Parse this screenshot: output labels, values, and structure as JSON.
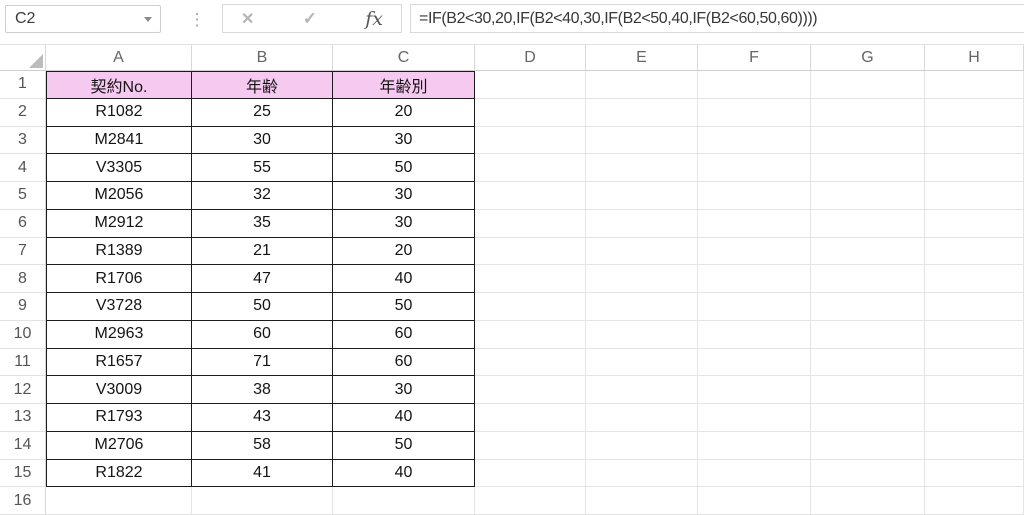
{
  "toolbar": {
    "name_box_value": "C2",
    "separator_icon": "⋮",
    "cancel_icon": "✕",
    "enter_icon": "✓",
    "fx_label": "fx",
    "formula": "=IF(B2<30,20,IF(B2<40,30,IF(B2<50,40,IF(B2<60,50,60))))"
  },
  "colors": {
    "header_fill": "#f6c9f1",
    "table_border": "#1c1c1c",
    "grid_line": "#e4e4e4",
    "header_text": "#666666"
  },
  "sheet": {
    "column_letters": [
      "A",
      "B",
      "C",
      "D",
      "E",
      "F",
      "G",
      "H"
    ],
    "row_numbers": [
      "1",
      "2",
      "3",
      "4",
      "5",
      "6",
      "7",
      "8",
      "9",
      "10",
      "11",
      "12",
      "13",
      "14",
      "15",
      "16"
    ],
    "table": {
      "headers": [
        "契約No.",
        "年齢",
        "年齢別"
      ],
      "rows": [
        [
          "R1082",
          "25",
          "20"
        ],
        [
          "M2841",
          "30",
          "30"
        ],
        [
          "V3305",
          "55",
          "50"
        ],
        [
          "M2056",
          "32",
          "30"
        ],
        [
          "M2912",
          "35",
          "30"
        ],
        [
          "R1389",
          "21",
          "20"
        ],
        [
          "R1706",
          "47",
          "40"
        ],
        [
          "V3728",
          "50",
          "50"
        ],
        [
          "M2963",
          "60",
          "60"
        ],
        [
          "R1657",
          "71",
          "60"
        ],
        [
          "V3009",
          "38",
          "30"
        ],
        [
          "R1793",
          "43",
          "40"
        ],
        [
          "M2706",
          "58",
          "50"
        ],
        [
          "R1822",
          "41",
          "40"
        ]
      ]
    }
  }
}
